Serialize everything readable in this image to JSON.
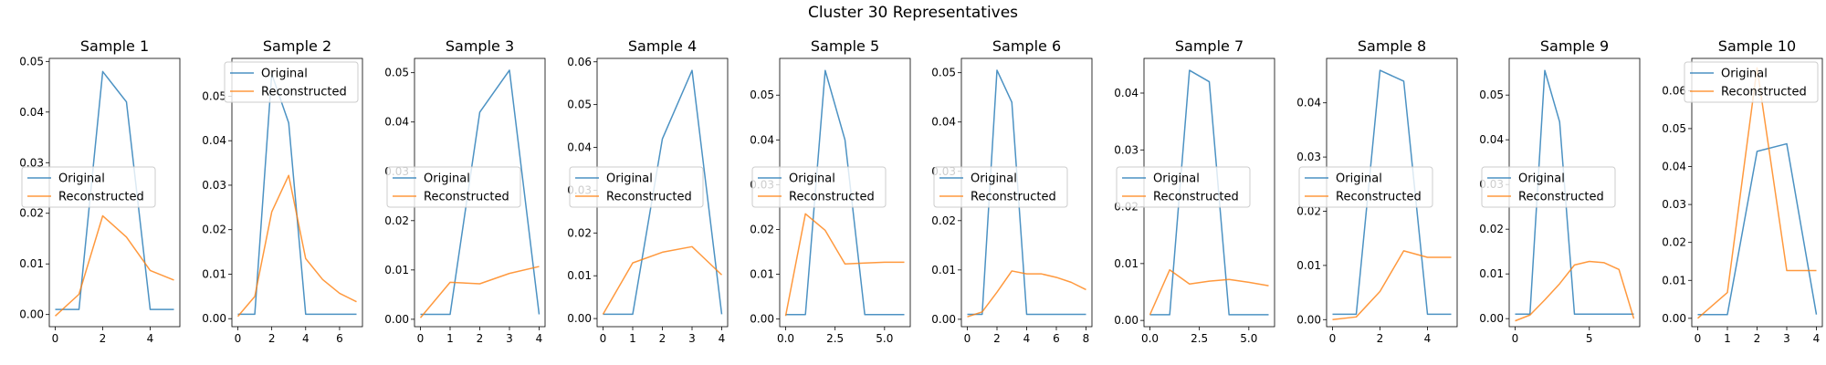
{
  "figure": {
    "suptitle": "Cluster 30 Representatives"
  },
  "colors": {
    "original": "#1f77b4",
    "reconstructed": "#ff7f0e"
  },
  "legend_labels": [
    "Original",
    "Reconstructed"
  ],
  "chart_data": [
    {
      "type": "line",
      "title": "Sample 1",
      "legend": "center-left",
      "xlim": [
        -0.25,
        5.25
      ],
      "ylim": [
        -0.0024,
        0.0506
      ],
      "xticks": [
        0,
        2,
        4
      ],
      "xtick_labels": [
        "0",
        "2",
        "4"
      ],
      "yticks": [
        0,
        0.01,
        0.02,
        0.03,
        0.04,
        0.05
      ],
      "ytick_labels": [
        "0.00",
        "0.01",
        "0.02",
        "0.03",
        "0.04",
        "0.05"
      ],
      "x": [
        0,
        1,
        2,
        3,
        4,
        5
      ],
      "series": [
        {
          "name": "Original",
          "values": [
            0.001,
            0.001,
            0.048,
            0.042,
            0.001,
            0.001
          ]
        },
        {
          "name": "Reconstructed",
          "values": [
            -0.0003,
            0.004,
            0.0195,
            0.0153,
            0.0087,
            0.0068
          ]
        }
      ]
    },
    {
      "type": "line",
      "title": "Sample 2",
      "legend": "top-right",
      "xlim": [
        -0.35,
        7.35
      ],
      "ylim": [
        -0.0018,
        0.0585
      ],
      "xticks": [
        0,
        2,
        4,
        6
      ],
      "xtick_labels": [
        "0",
        "2",
        "4",
        "6"
      ],
      "yticks": [
        0,
        0.01,
        0.02,
        0.03,
        0.04,
        0.05
      ],
      "ytick_labels": [
        "0.00",
        "0.01",
        "0.02",
        "0.03",
        "0.04",
        "0.05"
      ],
      "x": [
        0,
        1,
        2,
        3,
        4,
        5,
        6,
        7
      ],
      "series": [
        {
          "name": "Original",
          "values": [
            0.001,
            0.001,
            0.055,
            0.044,
            0.001,
            0.001,
            0.001,
            0.001
          ]
        },
        {
          "name": "Reconstructed",
          "values": [
            0.0005,
            0.005,
            0.024,
            0.0322,
            0.0135,
            0.0088,
            0.0057,
            0.0038
          ]
        }
      ]
    },
    {
      "type": "line",
      "title": "Sample 3",
      "legend": "center-left",
      "xlim": [
        -0.2,
        4.2
      ],
      "ylim": [
        -0.0015,
        0.0529
      ],
      "xticks": [
        0,
        1,
        2,
        3,
        4
      ],
      "xtick_labels": [
        "0",
        "1",
        "2",
        "3",
        "4"
      ],
      "yticks": [
        0,
        0.01,
        0.02,
        0.03,
        0.04,
        0.05
      ],
      "ytick_labels": [
        "0.00",
        "0.01",
        "0.02",
        "0.03",
        "0.04",
        "0.05"
      ],
      "x": [
        0,
        1,
        2,
        3,
        4
      ],
      "series": [
        {
          "name": "Original",
          "values": [
            0.001,
            0.001,
            0.042,
            0.0505,
            0.001
          ]
        },
        {
          "name": "Reconstructed",
          "values": [
            0.0003,
            0.0075,
            0.0072,
            0.0093,
            0.0107
          ]
        }
      ]
    },
    {
      "type": "line",
      "title": "Sample 4",
      "legend": "center-left",
      "xlim": [
        -0.2,
        4.2
      ],
      "ylim": [
        -0.0019,
        0.0608
      ],
      "xticks": [
        0,
        1,
        2,
        3,
        4
      ],
      "xtick_labels": [
        "0",
        "1",
        "2",
        "3",
        "4"
      ],
      "yticks": [
        0,
        0.01,
        0.02,
        0.03,
        0.04,
        0.05,
        0.06
      ],
      "ytick_labels": [
        "0.00",
        "0.01",
        "0.02",
        "0.03",
        "0.04",
        "0.05",
        "0.06"
      ],
      "x": [
        0,
        1,
        2,
        3,
        4
      ],
      "series": [
        {
          "name": "Original",
          "values": [
            0.001,
            0.001,
            0.042,
            0.058,
            0.001
          ]
        },
        {
          "name": "Reconstructed",
          "values": [
            0.001,
            0.013,
            0.0155,
            0.0168,
            0.0102
          ]
        }
      ]
    },
    {
      "type": "line",
      "title": "Sample 5",
      "legend": "center-left",
      "xlim": [
        -0.3,
        6.3
      ],
      "ylim": [
        -0.0017,
        0.0582
      ],
      "xticks": [
        0,
        2.5,
        5
      ],
      "xtick_labels": [
        "0.0",
        "2.5",
        "5.0"
      ],
      "yticks": [
        0,
        0.01,
        0.02,
        0.03,
        0.04,
        0.05
      ],
      "ytick_labels": [
        "0.00",
        "0.01",
        "0.02",
        "0.03",
        "0.04",
        "0.05"
      ],
      "x": [
        0,
        1,
        2,
        3,
        4,
        5,
        6
      ],
      "series": [
        {
          "name": "Original",
          "values": [
            0.001,
            0.001,
            0.0555,
            0.04,
            0.001,
            0.001,
            0.001
          ]
        },
        {
          "name": "Reconstructed",
          "values": [
            0.0007,
            0.0235,
            0.0198,
            0.0123,
            0.0125,
            0.0127,
            0.0127
          ]
        }
      ]
    },
    {
      "type": "line",
      "title": "Sample 6",
      "legend": "center-left",
      "xlim": [
        -0.4,
        8.4
      ],
      "ylim": [
        -0.0015,
        0.0529
      ],
      "xticks": [
        0,
        2,
        4,
        6,
        8
      ],
      "xtick_labels": [
        "0",
        "2",
        "4",
        "6",
        "8"
      ],
      "yticks": [
        0,
        0.01,
        0.02,
        0.03,
        0.04,
        0.05
      ],
      "ytick_labels": [
        "0.00",
        "0.01",
        "0.02",
        "0.03",
        "0.04",
        "0.05"
      ],
      "x": [
        0,
        1,
        2,
        3,
        4,
        5,
        6,
        7,
        8
      ],
      "series": [
        {
          "name": "Original",
          "values": [
            0.001,
            0.001,
            0.0505,
            0.044,
            0.001,
            0.001,
            0.001,
            0.001,
            0.001
          ]
        },
        {
          "name": "Reconstructed",
          "values": [
            0.0005,
            0.0015,
            0.0055,
            0.0098,
            0.0092,
            0.0092,
            0.0085,
            0.0075,
            0.006
          ]
        }
      ]
    },
    {
      "type": "line",
      "title": "Sample 7",
      "legend": "center-left",
      "xlim": [
        -0.3,
        6.3
      ],
      "ylim": [
        -0.0011,
        0.0461
      ],
      "xticks": [
        0,
        2.5,
        5
      ],
      "xtick_labels": [
        "0.0",
        "2.5",
        "5.0"
      ],
      "yticks": [
        0,
        0.01,
        0.02,
        0.03,
        0.04
      ],
      "ytick_labels": [
        "0.00",
        "0.01",
        "0.02",
        "0.03",
        "0.04"
      ],
      "x": [
        0,
        1,
        2,
        3,
        4,
        5,
        6
      ],
      "series": [
        {
          "name": "Original",
          "values": [
            0.001,
            0.001,
            0.044,
            0.042,
            0.001,
            0.001,
            0.001
          ]
        },
        {
          "name": "Reconstructed",
          "values": [
            0.001,
            0.0089,
            0.0064,
            0.0069,
            0.0072,
            0.0067,
            0.0061
          ]
        }
      ]
    },
    {
      "type": "line",
      "title": "Sample 8",
      "legend": "center-left",
      "xlim": [
        -0.25,
        5.25
      ],
      "ylim": [
        -0.0013,
        0.0482
      ],
      "xticks": [
        0,
        2,
        4
      ],
      "xtick_labels": [
        "0",
        "2",
        "4"
      ],
      "yticks": [
        0,
        0.01,
        0.02,
        0.03,
        0.04
      ],
      "ytick_labels": [
        "0.00",
        "0.01",
        "0.02",
        "0.03",
        "0.04"
      ],
      "x": [
        0,
        1,
        2,
        3,
        4,
        5
      ],
      "series": [
        {
          "name": "Original",
          "values": [
            0.001,
            0.001,
            0.046,
            0.044,
            0.001,
            0.001
          ]
        },
        {
          "name": "Reconstructed",
          "values": [
            0.0,
            0.0005,
            0.0052,
            0.0127,
            0.0115,
            0.0115
          ]
        }
      ]
    },
    {
      "type": "line",
      "title": "Sample 9",
      "legend": "center-left",
      "xlim": [
        -0.4,
        8.4
      ],
      "ylim": [
        -0.0018,
        0.0582
      ],
      "xticks": [
        0,
        5
      ],
      "xtick_labels": [
        "0",
        "5"
      ],
      "yticks": [
        0,
        0.01,
        0.02,
        0.03,
        0.04,
        0.05
      ],
      "ytick_labels": [
        "0.00",
        "0.01",
        "0.02",
        "0.03",
        "0.04",
        "0.05"
      ],
      "x": [
        0,
        1,
        2,
        3,
        4,
        5,
        6,
        7,
        8
      ],
      "series": [
        {
          "name": "Original",
          "values": [
            0.001,
            0.001,
            0.0555,
            0.044,
            0.001,
            0.001,
            0.001,
            0.001,
            0.001
          ]
        },
        {
          "name": "Reconstructed",
          "values": [
            -0.0005,
            0.0008,
            0.0042,
            0.0078,
            0.012,
            0.0128,
            0.0125,
            0.011,
            0.0
          ]
        }
      ]
    },
    {
      "type": "line",
      "title": "Sample 10",
      "legend": "top-right",
      "xlim": [
        -0.2,
        4.2
      ],
      "ylim": [
        -0.0022,
        0.0685
      ],
      "xticks": [
        0,
        1,
        2,
        3,
        4
      ],
      "xtick_labels": [
        "0",
        "1",
        "2",
        "3",
        "4"
      ],
      "yticks": [
        0,
        0.01,
        0.02,
        0.03,
        0.04,
        0.05,
        0.06
      ],
      "ytick_labels": [
        "0.00",
        "0.01",
        "0.02",
        "0.03",
        "0.04",
        "0.05",
        "0.06"
      ],
      "x": [
        0,
        1,
        2,
        3,
        4
      ],
      "series": [
        {
          "name": "Original",
          "values": [
            0.001,
            0.001,
            0.044,
            0.046,
            0.001
          ]
        },
        {
          "name": "Reconstructed",
          "values": [
            0.0,
            0.0068,
            0.066,
            0.0126,
            0.0126
          ]
        }
      ]
    }
  ]
}
